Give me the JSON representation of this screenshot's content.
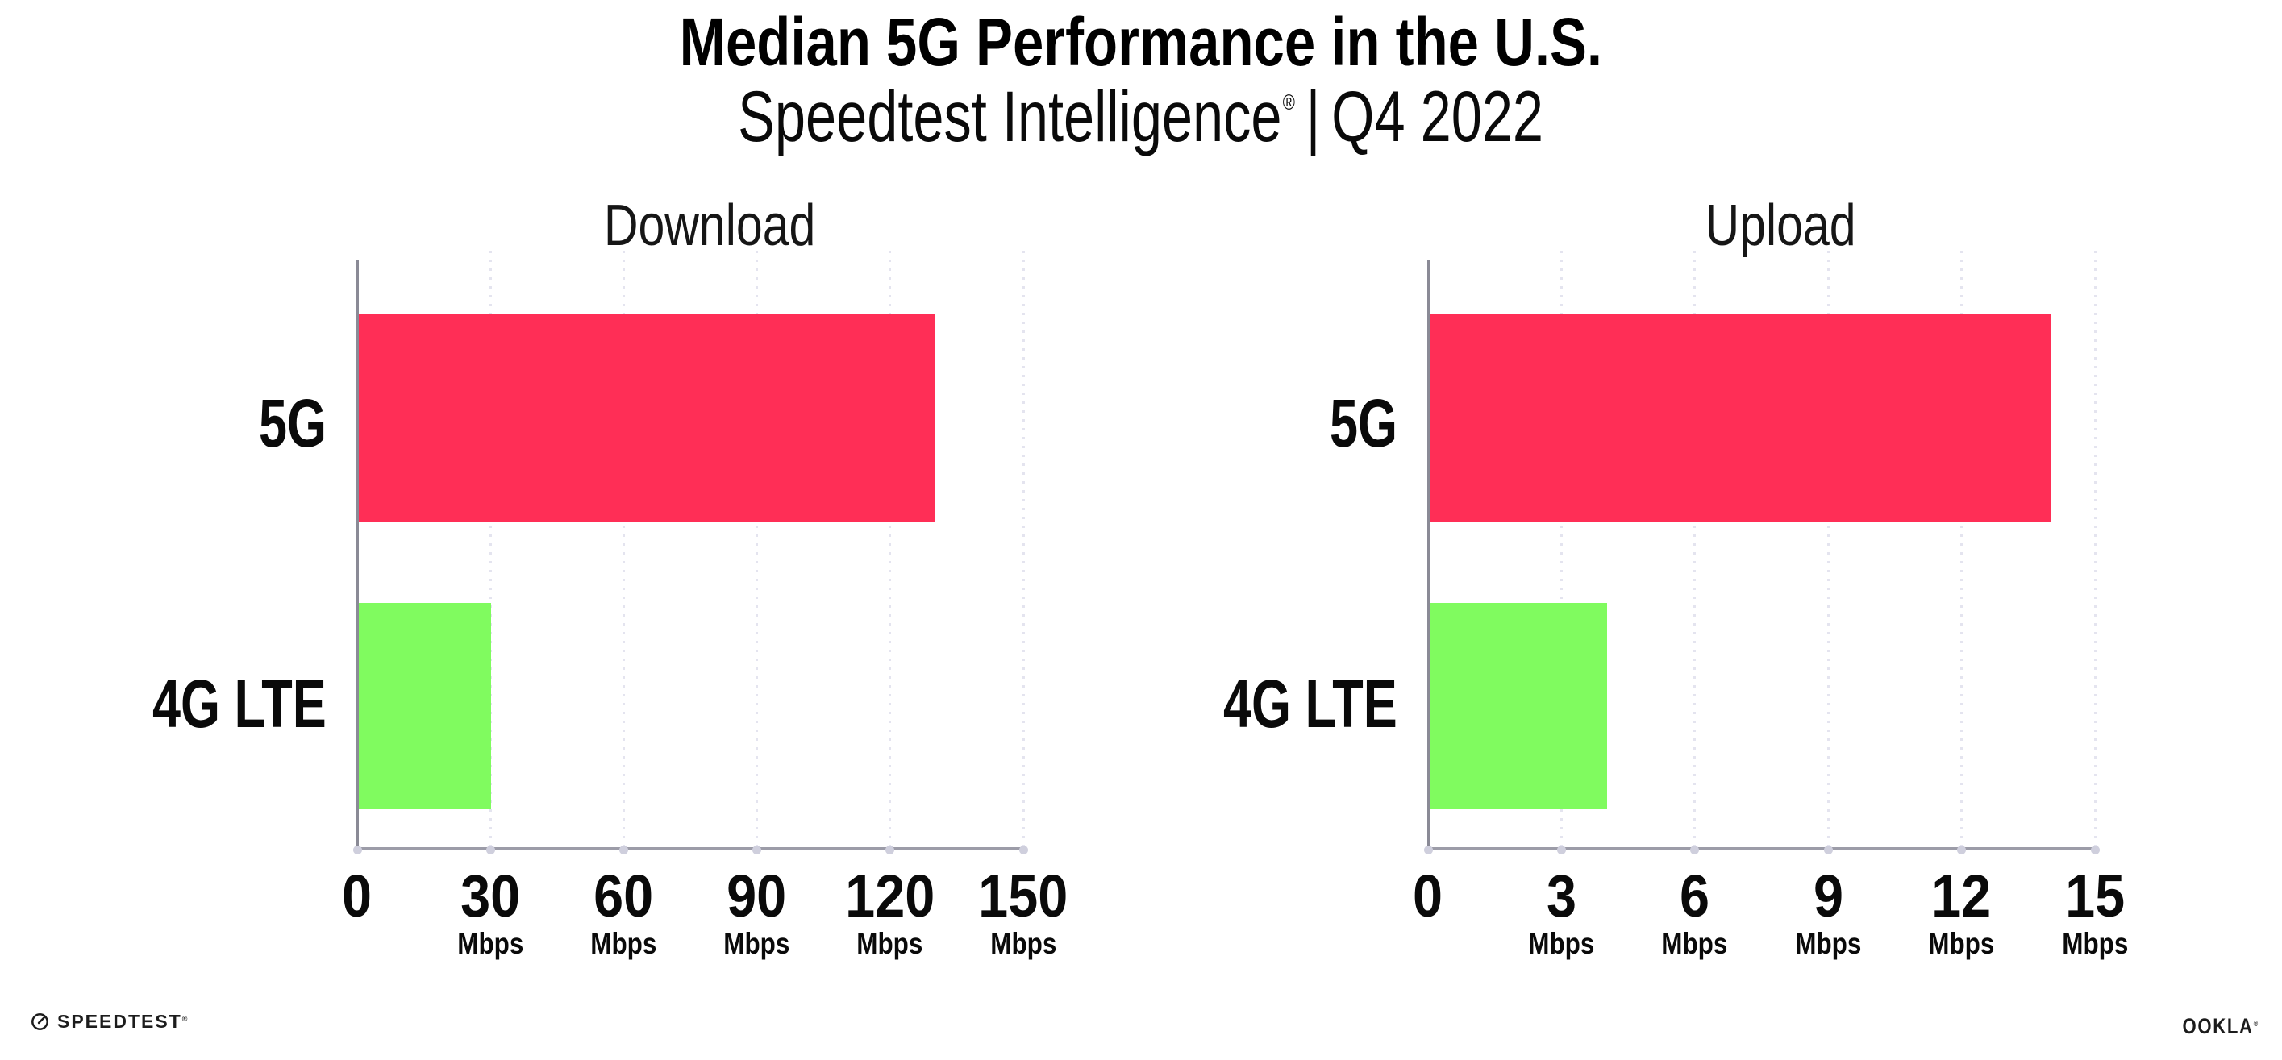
{
  "header": {
    "title": "Median 5G Performance in the U.S.",
    "subtitle": {
      "brand": "Speedtest Intelligence",
      "registered_mark": "®",
      "separator": "|",
      "period": "Q4 2022"
    }
  },
  "chart_data": [
    {
      "type": "bar",
      "orientation": "horizontal",
      "title": "Download",
      "categories": [
        "5G",
        "4G LTE"
      ],
      "values": [
        130,
        30
      ],
      "unit": "Mbps",
      "xlim": [
        0,
        150
      ],
      "xticks": [
        0,
        30,
        60,
        90,
        120,
        150
      ],
      "xtick_unit": "Mbps",
      "grid": "dotted vertical gridline at each tick",
      "legend": "none",
      "bar_colors": [
        "#FF2E56",
        "#80FB5F"
      ]
    },
    {
      "type": "bar",
      "orientation": "horizontal",
      "title": "Upload",
      "categories": [
        "5G",
        "4G LTE"
      ],
      "values": [
        14,
        4
      ],
      "unit": "Mbps",
      "xlim": [
        0,
        15
      ],
      "xticks": [
        0,
        3,
        6,
        9,
        12,
        15
      ],
      "xtick_unit": "Mbps",
      "grid": "dotted vertical gridline at each tick",
      "legend": "none",
      "bar_colors": [
        "#FF2E56",
        "#80FB5F"
      ]
    }
  ],
  "footer": {
    "speedtest_logo_text": "SPEEDTEST",
    "speedtest_mark": "®",
    "ookla_logo_text": "OOKLA",
    "ookla_mark": "®"
  },
  "colors": {
    "bar_5g": "#FF2E56",
    "bar_4g_lte": "#80FB5F",
    "grid_dot": "#E4E4EF",
    "axis_spine": "#8A8A96",
    "axis_baseline": "#9C9CA8",
    "axis_tick_dot": "#CFCFDD",
    "text": "#121212",
    "background": "#FFFFFF"
  }
}
